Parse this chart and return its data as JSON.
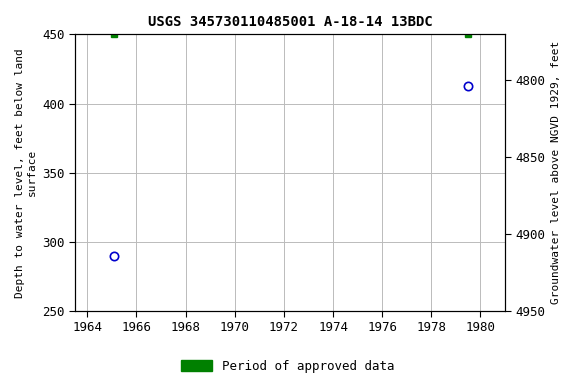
{
  "title": "USGS 345730110485001 A-18-14 13BDC",
  "ylabel_left": "Depth to water level, feet below land\nsurface",
  "ylabel_right": "Groundwater level above NGVD 1929, feet",
  "xlim": [
    1963.5,
    1981.0
  ],
  "xticks": [
    1964,
    1966,
    1968,
    1970,
    1972,
    1974,
    1976,
    1978,
    1980
  ],
  "ylim_left_top": 250,
  "ylim_left_bottom": 450,
  "ylim_right_top": 4950,
  "ylim_right_bottom": 4770,
  "yticks_left": [
    250,
    300,
    350,
    400,
    450
  ],
  "yticks_right": [
    4950,
    4900,
    4850,
    4800
  ],
  "blue_points_x": [
    1965.1,
    1979.5
  ],
  "blue_points_y": [
    290,
    413
  ],
  "green_points_x": [
    1965.1,
    1979.5
  ],
  "green_points_y": [
    450,
    450
  ],
  "point_color_blue": "#0000cc",
  "point_color_green": "#008000",
  "background_color": "#ffffff",
  "grid_color": "#bbbbbb",
  "legend_label": "Period of approved data",
  "title_fontsize": 10,
  "label_fontsize": 8,
  "tick_fontsize": 9
}
